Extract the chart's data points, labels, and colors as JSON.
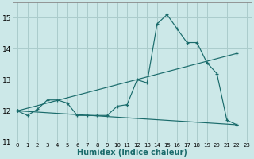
{
  "xlabel": "Humidex (Indice chaleur)",
  "bg_color": "#cce8e8",
  "grid_color": "#aacccc",
  "line_color": "#1a6b6b",
  "xlim": [
    -0.5,
    23.5
  ],
  "ylim": [
    11.0,
    15.5
  ],
  "yticks": [
    11,
    12,
    13,
    14,
    15
  ],
  "xticks": [
    0,
    1,
    2,
    3,
    4,
    5,
    6,
    7,
    8,
    9,
    10,
    11,
    12,
    13,
    14,
    15,
    16,
    17,
    18,
    19,
    20,
    21,
    22,
    23
  ],
  "series1_x": [
    0,
    1,
    2,
    3,
    4,
    5,
    6,
    7,
    8,
    9,
    10,
    11,
    12,
    13,
    14,
    15,
    16,
    17,
    18,
    19,
    20,
    21,
    22
  ],
  "series1_y": [
    12.0,
    11.85,
    12.05,
    12.35,
    12.35,
    12.25,
    11.85,
    11.85,
    11.85,
    11.85,
    12.15,
    12.2,
    13.0,
    12.9,
    14.8,
    15.1,
    14.65,
    14.2,
    14.2,
    13.55,
    13.2,
    11.7,
    11.55
  ],
  "series2_x": [
    0,
    22
  ],
  "series2_y": [
    12.0,
    13.85
  ],
  "series3_x": [
    0,
    22
  ],
  "series3_y": [
    12.0,
    11.55
  ]
}
